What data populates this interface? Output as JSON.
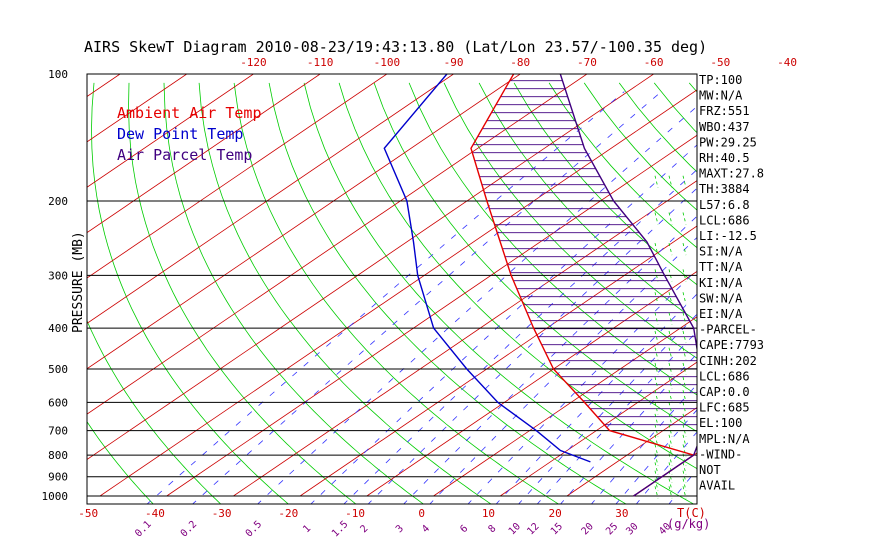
{
  "chart_data": {
    "type": "line",
    "title": "AIRS SkewT Diagram 2010-08-23/19:43:13.80 (Lat/Lon 23.57/-100.35 deg)",
    "ylabel": "PRESSURE (MB)",
    "xlabel_bottom": "T(C)",
    "mixing_ratio_unit": "(g/kg)",
    "y_scale": "log",
    "ylim": [
      1000,
      100
    ],
    "xlim_bottom": [
      -50,
      40
    ],
    "pressure_ticks": [
      100,
      200,
      300,
      400,
      500,
      600,
      700,
      800,
      900,
      1000
    ],
    "top_temp_ticks": [
      -120,
      -110,
      -100,
      -90,
      -80,
      -70,
      -60,
      -50,
      -40
    ],
    "bottom_temp_ticks": [
      -50,
      -40,
      -30,
      -20,
      -10,
      0,
      10,
      20,
      30
    ],
    "mixing_ratio_ticks": [
      "0.1",
      "0.2",
      "0.5",
      "1",
      "1.5",
      "2",
      "3",
      "4",
      "6",
      "8",
      "10",
      "12",
      "15",
      "20",
      "25",
      "30",
      "40"
    ],
    "legend": [
      {
        "name": "Ambient Air Temp",
        "color": "#e60000"
      },
      {
        "name": "Dew Point Temp",
        "color": "#0000cc"
      },
      {
        "name": "Air Parcel Temp",
        "color": "#400080"
      }
    ],
    "series": [
      {
        "name": "Ambient Air Temp",
        "points": [
          [
            1000,
            30
          ],
          [
            800,
            30
          ],
          [
            700,
            12
          ],
          [
            600,
            2
          ],
          [
            500,
            -10
          ],
          [
            400,
            -22
          ],
          [
            300,
            -37
          ],
          [
            250,
            -46
          ],
          [
            200,
            -57
          ],
          [
            150,
            -71
          ],
          [
            100,
            -81
          ]
        ]
      },
      {
        "name": "Dew Point Temp",
        "points": [
          [
            830,
            16
          ],
          [
            780,
            9
          ],
          [
            700,
            1
          ],
          [
            600,
            -11
          ],
          [
            500,
            -23
          ],
          [
            400,
            -37
          ],
          [
            300,
            -51
          ],
          [
            250,
            -59
          ],
          [
            200,
            -69
          ],
          [
            150,
            -84
          ],
          [
            100,
            -91
          ]
        ]
      },
      {
        "name": "Air Parcel Temp",
        "points": [
          [
            1000,
            30
          ],
          [
            800,
            30
          ],
          [
            700,
            26
          ],
          [
            600,
            20
          ],
          [
            500,
            12
          ],
          [
            400,
            2
          ],
          [
            300,
            -14
          ],
          [
            250,
            -24
          ],
          [
            200,
            -38
          ],
          [
            150,
            -54
          ],
          [
            100,
            -74
          ]
        ]
      }
    ],
    "stats": [
      "TP:100",
      "MW:N/A",
      "FRZ:551",
      "WBO:437",
      "PW:29.25",
      "RH:40.5",
      "MAXT:27.8",
      "TH:3884",
      "L57:6.8",
      "LCL:686",
      "LI:-12.5",
      "SI:N/A",
      "TT:N/A",
      "KI:N/A",
      "SW:N/A",
      "EI:N/A",
      "-PARCEL-",
      "CAPE:7793",
      "CINH:202",
      "LCL:686",
      "CAP:0.0",
      "LFC:685",
      "EL:100",
      "MPL:N/A",
      "-WIND-",
      "NOT",
      "AVAIL"
    ],
    "colors": {
      "isotherm": "#cc0000",
      "dry_adiabat": "#00cc00",
      "mixing_ratio": "#3333ff",
      "grid": "#000000",
      "hatch": "#400080",
      "mr_label": "#800080",
      "temp_label": "#cc0000"
    }
  }
}
